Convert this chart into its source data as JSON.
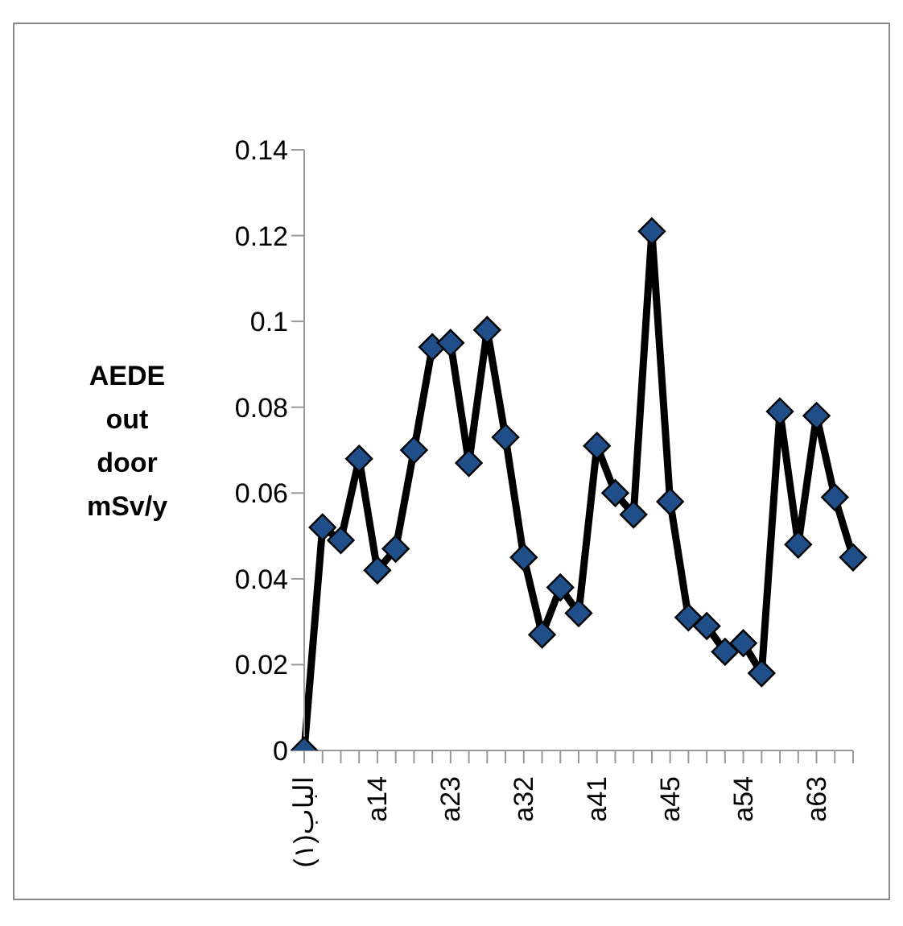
{
  "chart_data": {
    "type": "line",
    "ylabel": "AEDE out door mSv/y",
    "categories": [
      "الباب(١)",
      null,
      null,
      null,
      "a14",
      null,
      null,
      null,
      "a23",
      null,
      null,
      null,
      "a32",
      null,
      null,
      null,
      "a41",
      null,
      null,
      null,
      "a45",
      null,
      null,
      null,
      "a54",
      null,
      null,
      null,
      "a63",
      null,
      null
    ],
    "series": [
      {
        "color": "#000000",
        "values": [
          0,
          0.052,
          0.049,
          0.068,
          0.042,
          0.047,
          0.07,
          0.094,
          0.095,
          0.067,
          0.098,
          0.073,
          0.045,
          0.027,
          0.038,
          0.032,
          0.071,
          0.06,
          0.055,
          0.121,
          0.058,
          0.031,
          0.029,
          0.023,
          0.025,
          0.018,
          0.079,
          0.048,
          0.078,
          0.059,
          0.045
        ]
      }
    ],
    "ylim": [
      0,
      0.14
    ],
    "yticks": [
      0,
      0.02,
      0.04,
      0.06,
      0.08,
      0.1,
      0.12,
      0.14
    ],
    "grid": false,
    "legend": false,
    "marker": "diamond",
    "line_style": "solid"
  }
}
